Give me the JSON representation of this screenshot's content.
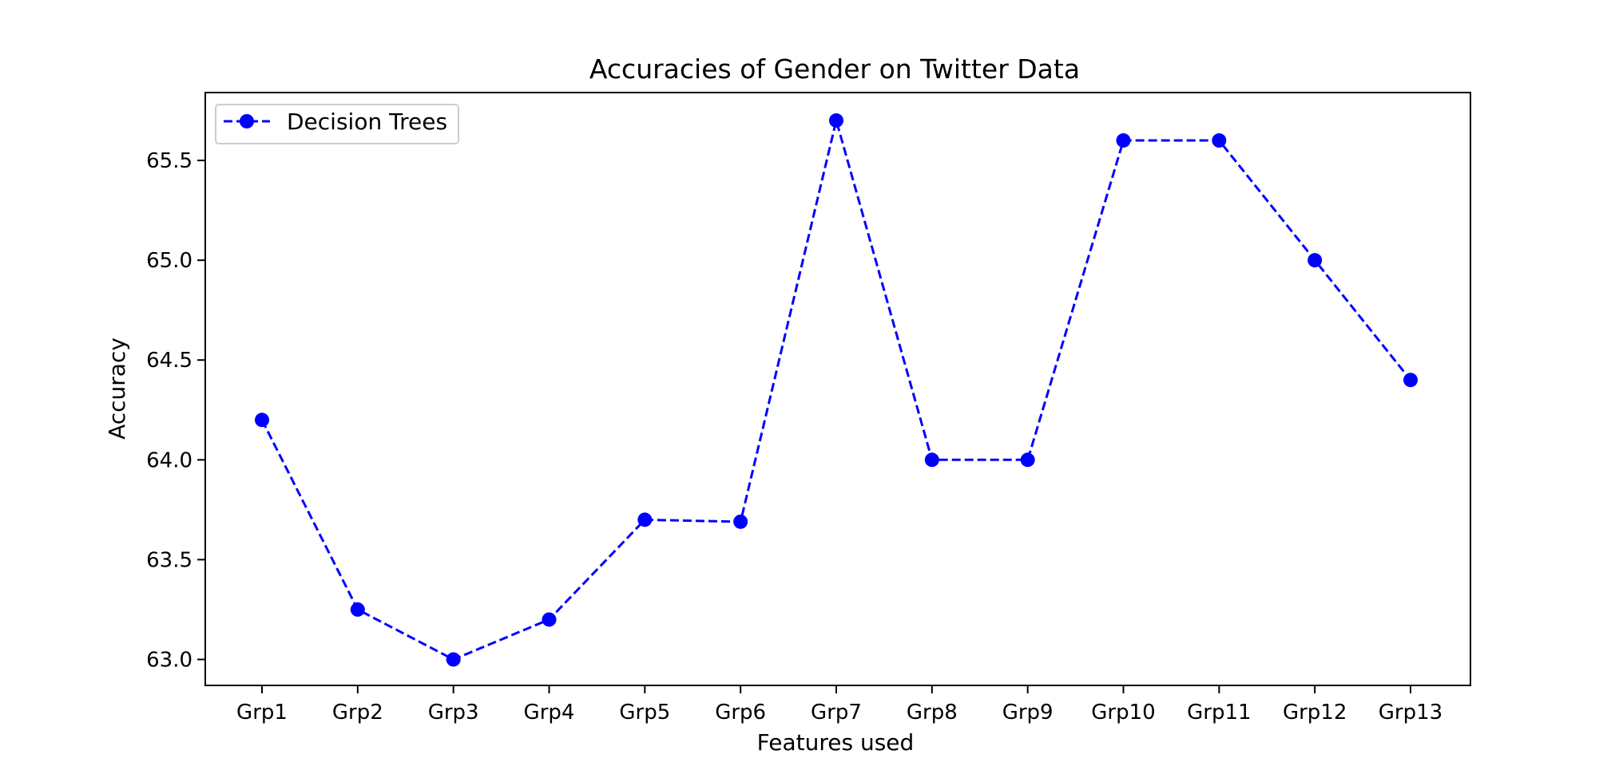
{
  "chart_data": {
    "type": "line",
    "title": "Accuracies of Gender on Twitter Data",
    "xlabel": "Features used",
    "ylabel": "Accuracy",
    "categories": [
      "Grp1",
      "Grp2",
      "Grp3",
      "Grp4",
      "Grp5",
      "Grp6",
      "Grp7",
      "Grp8",
      "Grp9",
      "Grp10",
      "Grp11",
      "Grp12",
      "Grp13"
    ],
    "series": [
      {
        "name": "Decision Trees",
        "values": [
          64.2,
          63.25,
          63.0,
          63.2,
          63.7,
          63.69,
          65.7,
          64.0,
          64.0,
          65.6,
          65.6,
          65.0,
          64.4
        ],
        "color": "#0000ff",
        "line_style": "dashed",
        "marker": "circle"
      }
    ],
    "ylim": [
      62.87,
      65.84
    ],
    "yticks": [
      63.0,
      63.5,
      64.0,
      64.5,
      65.0,
      65.5
    ],
    "ytick_labels": [
      "63.0",
      "63.5",
      "64.0",
      "64.5",
      "65.0",
      "65.5"
    ],
    "grid": false,
    "legend": "upper-left"
  }
}
